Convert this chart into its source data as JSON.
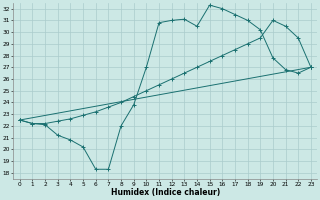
{
  "xlabel": "Humidex (Indice chaleur)",
  "bg_color": "#cce8e5",
  "grid_color": "#aacccc",
  "line_color": "#1a7070",
  "xlim": [
    -0.5,
    23.5
  ],
  "ylim": [
    17.5,
    32.5
  ],
  "xticks": [
    0,
    1,
    2,
    3,
    4,
    5,
    6,
    7,
    8,
    9,
    10,
    11,
    12,
    13,
    14,
    15,
    16,
    17,
    18,
    19,
    20,
    21,
    22,
    23
  ],
  "yticks": [
    18,
    19,
    20,
    21,
    22,
    23,
    24,
    25,
    26,
    27,
    28,
    29,
    30,
    31,
    32
  ],
  "zigzag_x": [
    0,
    1,
    2,
    3,
    4,
    5,
    6,
    7,
    8,
    9,
    10,
    11,
    12,
    13,
    14,
    15,
    16,
    17,
    18,
    19,
    20,
    21,
    22,
    23
  ],
  "zigzag_y": [
    22.5,
    22.2,
    22.1,
    21.2,
    20.8,
    20.2,
    18.3,
    18.3,
    22.0,
    23.8,
    27.0,
    30.8,
    31.0,
    31.1,
    30.5,
    32.3,
    32.0,
    31.5,
    31.0,
    30.2,
    27.8,
    26.8,
    26.5,
    27.0
  ],
  "smooth_x": [
    0,
    1,
    2,
    3,
    4,
    5,
    6,
    7,
    8,
    9,
    10,
    11,
    12,
    13,
    14,
    15,
    16,
    17,
    18,
    19,
    20,
    21,
    22,
    23
  ],
  "smooth_y": [
    22.5,
    22.2,
    22.2,
    22.4,
    22.6,
    22.9,
    23.2,
    23.6,
    24.0,
    24.5,
    25.0,
    25.5,
    26.0,
    26.5,
    27.0,
    27.5,
    28.0,
    28.5,
    29.0,
    29.5,
    31.0,
    30.5,
    29.5,
    27.0
  ],
  "trend_x": [
    0,
    23
  ],
  "trend_y": [
    22.5,
    27.0
  ]
}
